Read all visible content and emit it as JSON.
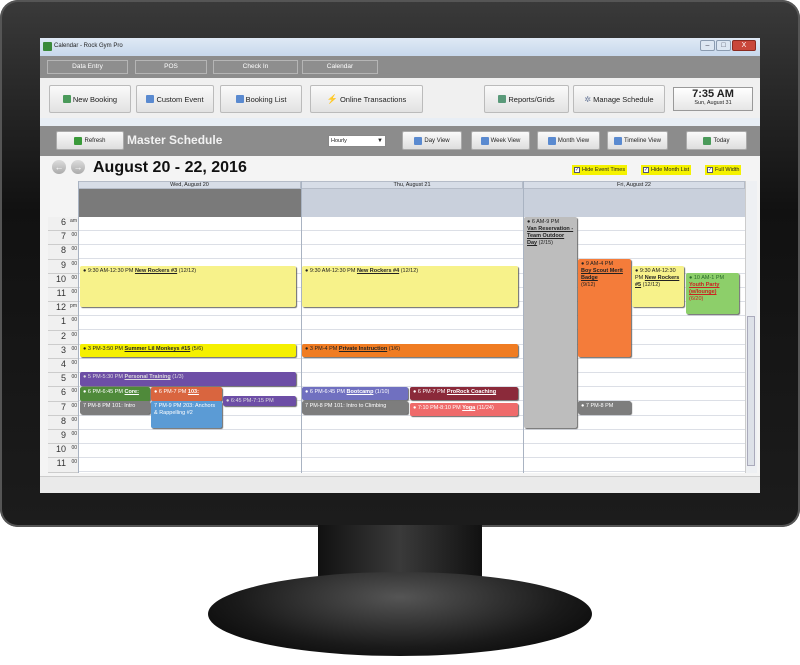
{
  "window": {
    "title": "Calendar - Rock Gym Pro",
    "minimize": "–",
    "maximize": "□",
    "close": "X"
  },
  "nav_tabs": [
    "Data Entry",
    "POS",
    "Check In",
    "Calendar"
  ],
  "toolbar": {
    "new_booking": "New Booking",
    "custom_event": "Custom Event",
    "booking_list": "Booking List",
    "online_transactions": "Online Transactions",
    "reports": "Reports/Grids",
    "manage_schedule": "Manage Schedule"
  },
  "clock": {
    "time": "7:35 AM",
    "date": "Sun, August 31"
  },
  "schedule": {
    "refresh": "Refresh",
    "title": "Master Schedule",
    "interval": "Hourly",
    "day_view": "Day View",
    "week_view": "Week View",
    "month_view": "Month View",
    "timeline_view": "Timeline View",
    "today": "Today"
  },
  "range_title": "August 20 - 22, 2016",
  "options": [
    {
      "label": "Hide Event Times",
      "checked": true
    },
    {
      "label": "Hide Month List",
      "checked": true
    },
    {
      "label": "Full Width",
      "checked": true
    }
  ],
  "days": [
    "Wed, August 20",
    "Thu, August 21",
    "Fri, August 22"
  ],
  "hours": [
    {
      "h": "6",
      "m": "am"
    },
    {
      "h": "7",
      "m": "00"
    },
    {
      "h": "8",
      "m": "00"
    },
    {
      "h": "9",
      "m": "00"
    },
    {
      "h": "10",
      "m": "00"
    },
    {
      "h": "11",
      "m": "00"
    },
    {
      "h": "12",
      "m": "pm"
    },
    {
      "h": "1",
      "m": "00"
    },
    {
      "h": "2",
      "m": "00"
    },
    {
      "h": "3",
      "m": "00"
    },
    {
      "h": "4",
      "m": "00"
    },
    {
      "h": "5",
      "m": "00"
    },
    {
      "h": "6",
      "m": "00"
    },
    {
      "h": "7",
      "m": "00"
    },
    {
      "h": "8",
      "m": "00"
    },
    {
      "h": "9",
      "m": "00"
    },
    {
      "h": "10",
      "m": "00"
    },
    {
      "h": "11",
      "m": "00"
    }
  ],
  "events": {
    "wed_rockers3": {
      "time": "9:30 AM-12:30 PM",
      "name": "New Rockers #3",
      "count": "(12/12)"
    },
    "wed_monkeys": {
      "time": "3 PM-3:50 PM",
      "name": "Summer Lil Monkeys #15",
      "count": "(5/6)"
    },
    "wed_pt": {
      "time": "5 PM-5:30 PM",
      "name": "Personal Training",
      "count": "(1/3)"
    },
    "wed_core": {
      "time": "6 PM-6:45 PM",
      "name": "Core:"
    },
    "wed_103": {
      "time": "6 PM-7 PM",
      "name": "103:"
    },
    "wed_101": {
      "time": "7 PM-8 PM",
      "name": "101: Intro"
    },
    "wed_203": {
      "time": "7 PM-9 PM",
      "name": "203: Anchors & Rappelling #2"
    },
    "wed_645": {
      "time": "6:45 PM-7:15 PM"
    },
    "thu_rockers4": {
      "time": "9:30 AM-12:30 PM",
      "name": "New Rockers #4",
      "count": "(12/12)"
    },
    "thu_private": {
      "time": "3 PM-4 PM",
      "name": "Private Instruction",
      "count": "(1/6)"
    },
    "thu_bootcamp": {
      "time": "6 PM-6:45 PM",
      "name": "Bootcamp",
      "count": "(1/10)"
    },
    "thu_prorock": {
      "time": "6 PM-7 PM",
      "name": "ProRock Coaching"
    },
    "thu_101": {
      "time": "7 PM-8 PM",
      "name": "101: Intro to Climbing"
    },
    "thu_yoga": {
      "time": "7:10 PM-8:10 PM",
      "name": "Yoga",
      "count": "(11/24)"
    },
    "fri_van": {
      "time": "6 AM-9 PM",
      "name": "Van Reservation - Team Outdoor Day",
      "count": "(2/15)"
    },
    "fri_scout": {
      "time": "9 AM-4 PM",
      "name": "Boy Scout Merit Badge",
      "count": "(9/12)"
    },
    "fri_rockers5": {
      "time": "9:30 AM-12:30 PM",
      "name": "New Rockers #5",
      "count": "(12/12)"
    },
    "fri_youth": {
      "time": "10 AM-1 PM",
      "name": "Youth Party (w/lounge)",
      "count": "(6/20)"
    },
    "fri_7pm": {
      "time": "7 PM-8 PM"
    }
  }
}
